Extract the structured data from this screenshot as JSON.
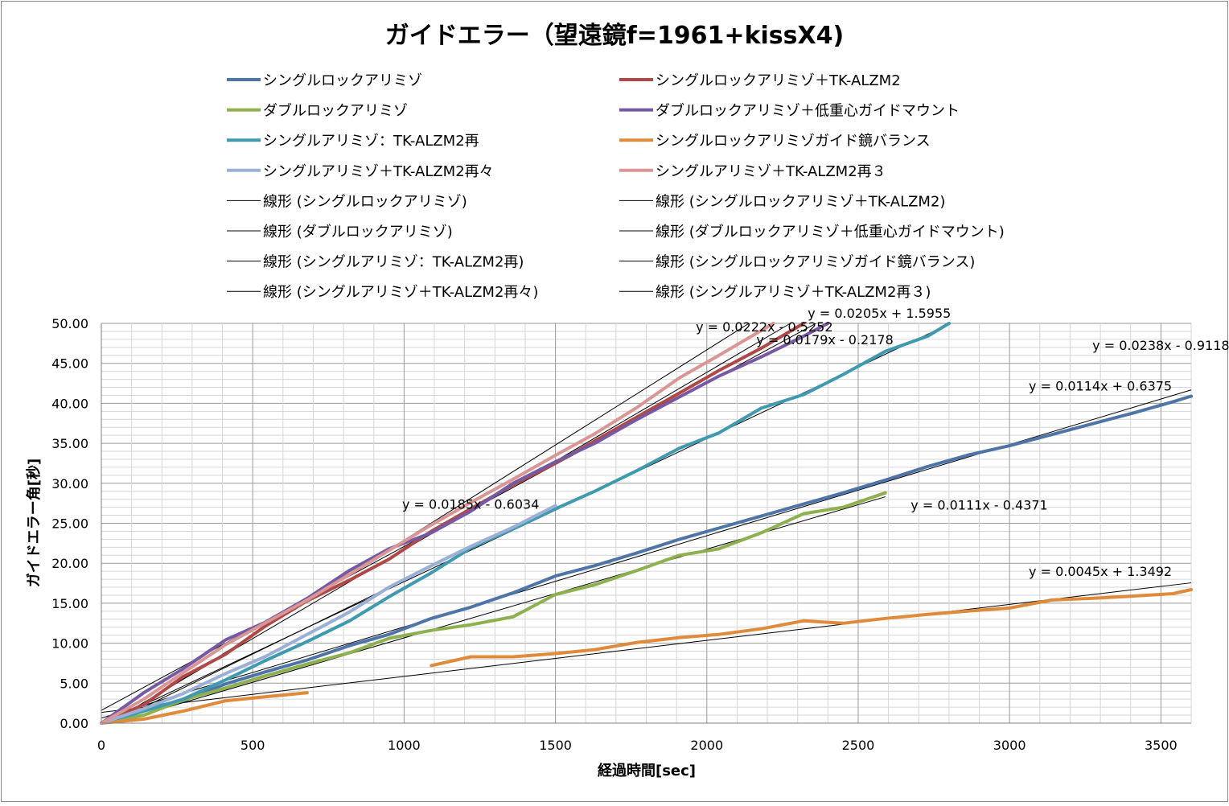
{
  "chart_data": {
    "type": "line",
    "title": "ガイドエラー（望遠鏡f=1961+kissX4)",
    "xlabel": "経過時間[sec]",
    "ylabel": "ガイドエラー角[秒]",
    "xlim": [
      0,
      3600
    ],
    "ylim": [
      0,
      50
    ],
    "x_ticks": [
      "0",
      "500",
      "1000",
      "1500",
      "2000",
      "2500",
      "3000",
      "3500"
    ],
    "y_ticks": [
      "0.00",
      "5.00",
      "10.00",
      "15.00",
      "20.00",
      "25.00",
      "30.00",
      "35.00",
      "40.00",
      "45.00",
      "50.00"
    ],
    "grid": true,
    "legend_position": "top",
    "series": [
      {
        "name": "シングルロックアリミゾ",
        "color": "#4F74A8",
        "points": [
          [
            0,
            0
          ],
          [
            140,
            1.8
          ],
          [
            270,
            2.8
          ],
          [
            410,
            4.9
          ],
          [
            540,
            6.4
          ],
          [
            680,
            7.9
          ],
          [
            820,
            9.7
          ],
          [
            950,
            11.1
          ],
          [
            1090,
            13.1
          ],
          [
            1220,
            14.5
          ],
          [
            1360,
            16.3
          ],
          [
            1500,
            18.4
          ],
          [
            1630,
            19.7
          ],
          [
            1770,
            21.3
          ],
          [
            1910,
            23.0
          ],
          [
            2040,
            24.4
          ],
          [
            2180,
            25.9
          ],
          [
            2320,
            27.4
          ],
          [
            2450,
            28.8
          ],
          [
            2590,
            30.4
          ],
          [
            2730,
            32.1
          ],
          [
            2860,
            33.5
          ],
          [
            3000,
            34.7
          ],
          [
            3140,
            36.1
          ],
          [
            3270,
            37.4
          ],
          [
            3410,
            38.8
          ],
          [
            3540,
            40.2
          ],
          [
            3600,
            40.9
          ]
        ]
      },
      {
        "name": "シングルロックアリミゾ＋TK-ALZM2",
        "color": "#B04848",
        "points": [
          [
            0,
            0
          ],
          [
            140,
            2.3
          ],
          [
            270,
            5.8
          ],
          [
            410,
            8.6
          ],
          [
            540,
            12.1
          ],
          [
            680,
            15.3
          ],
          [
            820,
            17.9
          ],
          [
            950,
            20.5
          ],
          [
            1090,
            24.0
          ],
          [
            1220,
            26.8
          ],
          [
            1360,
            29.8
          ],
          [
            1500,
            32.5
          ],
          [
            1630,
            35.3
          ],
          [
            1770,
            38.3
          ],
          [
            1910,
            41.3
          ],
          [
            2040,
            44.1
          ],
          [
            2180,
            46.9
          ],
          [
            2320,
            50.0
          ]
        ]
      },
      {
        "name": "ダブルロックアリミゾ",
        "color": "#8EB04F",
        "points": [
          [
            0,
            0
          ],
          [
            140,
            1.0
          ],
          [
            270,
            2.9
          ],
          [
            410,
            4.4
          ],
          [
            540,
            5.9
          ],
          [
            680,
            7.4
          ],
          [
            820,
            8.8
          ],
          [
            950,
            10.6
          ],
          [
            1090,
            11.6
          ],
          [
            1220,
            12.3
          ],
          [
            1360,
            13.3
          ],
          [
            1500,
            16.1
          ],
          [
            1630,
            17.3
          ],
          [
            1770,
            19.1
          ],
          [
            1910,
            21.0
          ],
          [
            2040,
            21.8
          ],
          [
            2180,
            23.8
          ],
          [
            2320,
            26.2
          ],
          [
            2450,
            27.0
          ],
          [
            2590,
            28.8
          ]
        ]
      },
      {
        "name": "ダブルロックアリミゾ＋低重心ガイドマウント",
        "color": "#7659A3",
        "points": [
          [
            0,
            0
          ],
          [
            140,
            3.8
          ],
          [
            270,
            6.8
          ],
          [
            410,
            10.4
          ],
          [
            540,
            12.6
          ],
          [
            680,
            15.6
          ],
          [
            820,
            19.1
          ],
          [
            950,
            21.8
          ],
          [
            1090,
            23.8
          ],
          [
            1220,
            26.5
          ],
          [
            1360,
            30.0
          ],
          [
            1500,
            32.7
          ],
          [
            1630,
            35.0
          ],
          [
            1770,
            38.0
          ],
          [
            1910,
            40.8
          ],
          [
            2040,
            43.4
          ],
          [
            2180,
            45.8
          ],
          [
            2320,
            48.4
          ],
          [
            2400,
            50.0
          ]
        ]
      },
      {
        "name": "シングルアリミゾ：TK-ALZM2再",
        "color": "#3F9AAF",
        "points": [
          [
            0,
            0
          ],
          [
            140,
            1.5
          ],
          [
            270,
            3.0
          ],
          [
            410,
            5.4
          ],
          [
            540,
            7.8
          ],
          [
            680,
            10.2
          ],
          [
            820,
            12.8
          ],
          [
            950,
            15.8
          ],
          [
            1090,
            18.8
          ],
          [
            1220,
            21.9
          ],
          [
            1360,
            24.3
          ],
          [
            1500,
            26.8
          ],
          [
            1630,
            29.0
          ],
          [
            1770,
            31.6
          ],
          [
            1910,
            34.4
          ],
          [
            2040,
            36.3
          ],
          [
            2180,
            39.4
          ],
          [
            2320,
            41.1
          ],
          [
            2450,
            43.6
          ],
          [
            2590,
            46.5
          ],
          [
            2730,
            48.4
          ],
          [
            2800,
            50.0
          ]
        ]
      },
      {
        "name": "シングルロックアリミゾガイド鏡バランス",
        "color": "#E08A3C",
        "points": [
          [
            0,
            0
          ],
          [
            140,
            0.5
          ],
          [
            270,
            1.5
          ],
          [
            410,
            2.8
          ],
          [
            540,
            3.3
          ],
          [
            680,
            3.8
          ]
        ]
      },
      {
        "name": "シングルロックアリミゾガイド鏡バランス",
        "color": "#E08A3C",
        "points": [
          [
            1090,
            7.2
          ],
          [
            1220,
            8.3
          ],
          [
            1360,
            8.3
          ],
          [
            1500,
            8.7
          ],
          [
            1630,
            9.2
          ],
          [
            1770,
            10.1
          ],
          [
            1910,
            10.7
          ],
          [
            2040,
            11.1
          ],
          [
            2180,
            11.8
          ],
          [
            2320,
            12.8
          ],
          [
            2450,
            12.5
          ],
          [
            2590,
            13.1
          ],
          [
            2730,
            13.6
          ],
          [
            2860,
            14.0
          ],
          [
            3000,
            14.4
          ],
          [
            3140,
            15.4
          ],
          [
            3270,
            15.6
          ],
          [
            3410,
            15.9
          ],
          [
            3540,
            16.2
          ],
          [
            3600,
            16.7
          ]
        ]
      },
      {
        "name": "シングルアリミゾ＋TK-ALZM2再々",
        "color": "#9BB0D6",
        "points": [
          [
            0,
            0
          ],
          [
            140,
            1.8
          ],
          [
            270,
            3.7
          ],
          [
            410,
            6.2
          ],
          [
            540,
            8.3
          ],
          [
            680,
            11.1
          ],
          [
            820,
            13.9
          ],
          [
            950,
            17.0
          ],
          [
            1090,
            19.7
          ],
          [
            1220,
            22.1
          ],
          [
            1360,
            24.5
          ],
          [
            1500,
            27.2
          ]
        ]
      },
      {
        "name": "シングルアリミゾ＋TK-ALZM2再３",
        "color": "#D99694",
        "points": [
          [
            0,
            0
          ],
          [
            140,
            3.0
          ],
          [
            270,
            6.3
          ],
          [
            410,
            9.8
          ],
          [
            540,
            12.5
          ],
          [
            680,
            15.4
          ],
          [
            820,
            18.6
          ],
          [
            950,
            21.6
          ],
          [
            1090,
            24.8
          ],
          [
            1220,
            27.6
          ],
          [
            1360,
            30.5
          ],
          [
            1500,
            33.5
          ],
          [
            1630,
            36.2
          ],
          [
            1770,
            39.5
          ],
          [
            1910,
            43.2
          ],
          [
            2040,
            46.0
          ],
          [
            2180,
            49.1
          ],
          [
            2220,
            50.0
          ]
        ]
      }
    ],
    "trendlines": [
      {
        "name": "線形 (シングルロックアリミゾ)",
        "slope": 0.0114,
        "intercept": 0.6375,
        "x_range": [
          0,
          3600
        ],
        "label": "y = 0.0114x + 0.6375"
      },
      {
        "name": "線形 (シングルロックアリミゾ＋TK-ALZM2)",
        "slope": 0.0222,
        "intercept": -0.5252,
        "x_range": [
          0,
          2400
        ],
        "label": "y = 0.0222x - 0.5252"
      },
      {
        "name": "線形 (ダブルロックアリミゾ)",
        "slope": 0.0111,
        "intercept": -0.4371,
        "x_range": [
          0,
          2590
        ],
        "label": "y = 0.0111x - 0.4371"
      },
      {
        "name": "線形 (ダブルロックアリミゾ＋低重心ガイドマウント)",
        "slope": 0.0205,
        "intercept": 1.5955,
        "x_range": [
          0,
          2360
        ],
        "label": "y = 0.0205x + 1.5955"
      },
      {
        "name": "線形 (シングルアリミゾ：TK-ALZM2再)",
        "slope": 0.0179,
        "intercept": -0.2178,
        "x_range": [
          0,
          2810
        ],
        "label": "y = 0.0179x - 0.2178"
      },
      {
        "name": "線形 (シングルロックアリミゾガイド鏡バランス)",
        "slope": 0.0045,
        "intercept": 1.3492,
        "x_range": [
          0,
          3600
        ],
        "label": "y = 0.0045x + 1.3492"
      },
      {
        "name": "線形 (シングルアリミゾ＋TK-ALZM2再々)",
        "slope": 0.0185,
        "intercept": -0.6034,
        "x_range": [
          0,
          1500
        ],
        "label": "y = 0.0185x - 0.6034"
      },
      {
        "name": "線形 (シングルアリミゾ＋TK-ALZM2再３)",
        "slope": 0.0238,
        "intercept": -0.9118,
        "x_range": [
          0,
          2140
        ],
        "label": "y = 0.0238x - 0.9118"
      }
    ],
    "legend": [
      {
        "label": "シングルロックアリミゾ",
        "color": "#4F74A8",
        "kind": "series"
      },
      {
        "label": "シングルロックアリミゾ＋TK-ALZM2",
        "color": "#B04848",
        "kind": "series"
      },
      {
        "label": "ダブルロックアリミゾ",
        "color": "#8EB04F",
        "kind": "series"
      },
      {
        "label": "ダブルロックアリミゾ＋低重心ガイドマウント",
        "color": "#7659A3",
        "kind": "series"
      },
      {
        "label": "シングルアリミゾ：TK-ALZM2再",
        "color": "#3F9AAF",
        "kind": "series"
      },
      {
        "label": "シングルロックアリミゾガイド鏡バランス",
        "color": "#E08A3C",
        "kind": "series"
      },
      {
        "label": "シングルアリミゾ＋TK-ALZM2再々",
        "color": "#9BB0D6",
        "kind": "series"
      },
      {
        "label": "シングルアリミゾ＋TK-ALZM2再３",
        "color": "#D99694",
        "kind": "series"
      },
      {
        "label": "線形 (シングルロックアリミゾ)",
        "color": "#000000",
        "kind": "trend"
      },
      {
        "label": "線形 (シングルロックアリミゾ＋TK-ALZM2)",
        "color": "#000000",
        "kind": "trend"
      },
      {
        "label": "線形 (ダブルロックアリミゾ)",
        "color": "#000000",
        "kind": "trend"
      },
      {
        "label": "線形 (ダブルロックアリミゾ＋低重心ガイドマウント)",
        "color": "#000000",
        "kind": "trend"
      },
      {
        "label": "線形 (シングルアリミゾ：TK-ALZM2再)",
        "color": "#000000",
        "kind": "trend"
      },
      {
        "label": "線形 (シングルロックアリミゾガイド鏡バランス)",
        "color": "#000000",
        "kind": "trend"
      },
      {
        "label": "線形 (シングルアリミゾ＋TK-ALZM2再々)",
        "color": "#000000",
        "kind": "trend"
      },
      {
        "label": "線形 (シングルアリミゾ＋TK-ALZM2再３)",
        "color": "#000000",
        "kind": "trend"
      }
    ]
  }
}
